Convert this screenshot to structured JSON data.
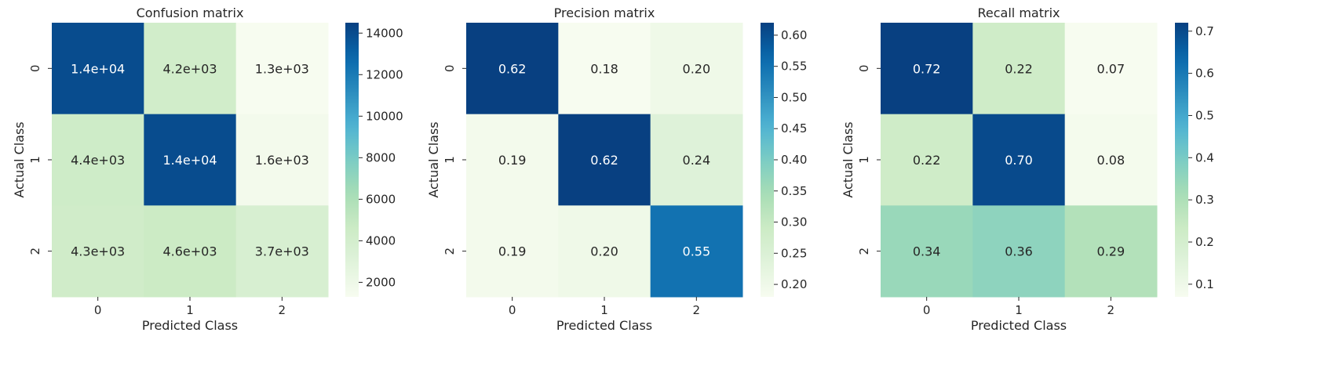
{
  "chart_data": [
    {
      "type": "heatmap",
      "title": "Confusion matrix",
      "xlabel": "Predicted Class",
      "ylabel": "Actual Class",
      "x_categories": [
        "0",
        "1",
        "2"
      ],
      "y_categories": [
        "0",
        "1",
        "2"
      ],
      "values": [
        [
          14000,
          4200,
          1300
        ],
        [
          4400,
          14000,
          1600
        ],
        [
          4300,
          4600,
          3700
        ]
      ],
      "annotations": [
        [
          "1.4e+04",
          "4.2e+03",
          "1.3e+03"
        ],
        [
          "4.4e+03",
          "1.4e+04",
          "1.6e+03"
        ],
        [
          "4.3e+03",
          "4.6e+03",
          "3.7e+03"
        ]
      ],
      "colorbar": {
        "vmin": 1300,
        "vmax": 14500,
        "ticks": [
          2000,
          4000,
          6000,
          8000,
          10000,
          12000,
          14000
        ],
        "tick_labels": [
          "2000",
          "4000",
          "6000",
          "8000",
          "10000",
          "12000",
          "14000"
        ]
      },
      "colormap": "GnBu"
    },
    {
      "type": "heatmap",
      "title": "Precision matrix",
      "xlabel": "Predicted Class",
      "ylabel": "Actual Class",
      "x_categories": [
        "0",
        "1",
        "2"
      ],
      "y_categories": [
        "0",
        "1",
        "2"
      ],
      "values": [
        [
          0.62,
          0.18,
          0.2
        ],
        [
          0.19,
          0.62,
          0.24
        ],
        [
          0.19,
          0.2,
          0.55
        ]
      ],
      "annotations": [
        [
          "0.62",
          "0.18",
          "0.20"
        ],
        [
          "0.19",
          "0.62",
          "0.24"
        ],
        [
          "0.19",
          "0.20",
          "0.55"
        ]
      ],
      "colorbar": {
        "vmin": 0.18,
        "vmax": 0.62,
        "ticks": [
          0.2,
          0.25,
          0.3,
          0.35,
          0.4,
          0.45,
          0.5,
          0.55,
          0.6
        ],
        "tick_labels": [
          "0.20",
          "0.25",
          "0.30",
          "0.35",
          "0.40",
          "0.45",
          "0.50",
          "0.55",
          "0.60"
        ]
      },
      "colormap": "GnBu"
    },
    {
      "type": "heatmap",
      "title": "Recall matrix",
      "xlabel": "Predicted Class",
      "ylabel": "Actual Class",
      "x_categories": [
        "0",
        "1",
        "2"
      ],
      "y_categories": [
        "0",
        "1",
        "2"
      ],
      "values": [
        [
          0.72,
          0.22,
          0.07
        ],
        [
          0.22,
          0.7,
          0.08
        ],
        [
          0.34,
          0.36,
          0.29
        ]
      ],
      "annotations": [
        [
          "0.72",
          "0.22",
          "0.07"
        ],
        [
          "0.22",
          "0.70",
          "0.08"
        ],
        [
          "0.34",
          "0.36",
          "0.29"
        ]
      ],
      "colorbar": {
        "vmin": 0.07,
        "vmax": 0.72,
        "ticks": [
          0.1,
          0.2,
          0.3,
          0.4,
          0.5,
          0.6,
          0.7
        ],
        "tick_labels": [
          "0.1",
          "0.2",
          "0.3",
          "0.4",
          "0.5",
          "0.6",
          "0.7"
        ]
      },
      "colormap": "GnBu"
    }
  ]
}
